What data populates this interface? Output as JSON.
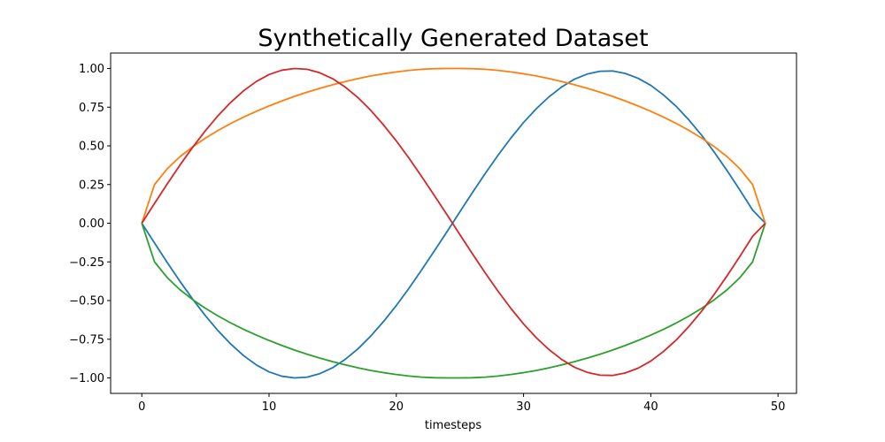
{
  "chart_data": {
    "type": "line",
    "title": "Synthetically Generated Dataset",
    "xlabel": "timesteps",
    "ylabel": "",
    "xlim": [
      -2.45,
      51.45
    ],
    "ylim": [
      -1.1,
      1.1
    ],
    "xticks": [
      0,
      10,
      20,
      30,
      40,
      50
    ],
    "xtick_labels": [
      "0",
      "10",
      "20",
      "30",
      "40",
      "50"
    ],
    "yticks": [
      -1.0,
      -0.75,
      -0.5,
      -0.25,
      0.0,
      0.25,
      0.5,
      0.75,
      1.0
    ],
    "ytick_labels": [
      "−1.00",
      "−0.75",
      "−0.50",
      "−0.25",
      "0.00",
      "0.25",
      "0.50",
      "0.75",
      "1.00"
    ],
    "grid": false,
    "legend": "none",
    "x": [
      0,
      1,
      2,
      3,
      4,
      5,
      6,
      7,
      8,
      9,
      10,
      11,
      12,
      13,
      14,
      15,
      16,
      17,
      18,
      19,
      20,
      21,
      22,
      23,
      24,
      25,
      26,
      27,
      28,
      29,
      30,
      31,
      32,
      33,
      34,
      35,
      36,
      37,
      38,
      39,
      40,
      41,
      42,
      43,
      44,
      45,
      46,
      47,
      48,
      49
    ],
    "series": [
      {
        "color": "#1f77b4",
        "values": [
          0.0,
          -0.128,
          -0.254,
          -0.376,
          -0.491,
          -0.598,
          -0.696,
          -0.782,
          -0.856,
          -0.916,
          -0.961,
          -0.989,
          -1.0,
          -0.995,
          -0.972,
          -0.934,
          -0.879,
          -0.811,
          -0.729,
          -0.635,
          -0.532,
          -0.42,
          -0.301,
          -0.178,
          -0.053,
          0.074,
          0.2,
          0.323,
          0.44,
          0.55,
          0.651,
          0.74,
          0.817,
          0.881,
          0.931,
          0.964,
          0.982,
          0.984,
          0.968,
          0.937,
          0.891,
          0.829,
          0.755,
          0.667,
          0.568,
          0.458,
          0.339,
          0.214,
          0.085,
          0.0
        ]
      },
      {
        "color": "#ff7f0e",
        "values": [
          0.0,
          0.25,
          0.352,
          0.43,
          0.494,
          0.55,
          0.6,
          0.645,
          0.686,
          0.723,
          0.758,
          0.79,
          0.82,
          0.847,
          0.872,
          0.895,
          0.916,
          0.935,
          0.952,
          0.966,
          0.978,
          0.988,
          0.995,
          0.999,
          1.0,
          1.0,
          0.999,
          0.995,
          0.988,
          0.978,
          0.966,
          0.952,
          0.935,
          0.916,
          0.895,
          0.872,
          0.847,
          0.82,
          0.79,
          0.758,
          0.723,
          0.686,
          0.645,
          0.6,
          0.55,
          0.494,
          0.43,
          0.352,
          0.25,
          0.0
        ]
      },
      {
        "color": "#2ca02c",
        "values": [
          0.0,
          -0.25,
          -0.352,
          -0.43,
          -0.494,
          -0.55,
          -0.6,
          -0.645,
          -0.686,
          -0.723,
          -0.758,
          -0.79,
          -0.82,
          -0.847,
          -0.872,
          -0.895,
          -0.916,
          -0.935,
          -0.952,
          -0.966,
          -0.978,
          -0.988,
          -0.995,
          -0.999,
          -1.0,
          -1.0,
          -0.999,
          -0.995,
          -0.988,
          -0.978,
          -0.966,
          -0.952,
          -0.935,
          -0.916,
          -0.895,
          -0.872,
          -0.847,
          -0.82,
          -0.79,
          -0.758,
          -0.723,
          -0.686,
          -0.645,
          -0.6,
          -0.55,
          -0.494,
          -0.43,
          -0.352,
          -0.25,
          0.0
        ]
      },
      {
        "color": "#d62728",
        "values": [
          0.0,
          0.128,
          0.254,
          0.376,
          0.491,
          0.598,
          0.696,
          0.782,
          0.856,
          0.916,
          0.961,
          0.989,
          1.0,
          0.995,
          0.972,
          0.934,
          0.879,
          0.811,
          0.729,
          0.635,
          0.532,
          0.42,
          0.301,
          0.178,
          0.053,
          -0.074,
          -0.2,
          -0.323,
          -0.44,
          -0.55,
          -0.651,
          -0.74,
          -0.817,
          -0.881,
          -0.931,
          -0.964,
          -0.982,
          -0.984,
          -0.968,
          -0.937,
          -0.891,
          -0.829,
          -0.755,
          -0.667,
          -0.568,
          -0.458,
          -0.339,
          -0.214,
          -0.085,
          0.0
        ]
      }
    ]
  }
}
